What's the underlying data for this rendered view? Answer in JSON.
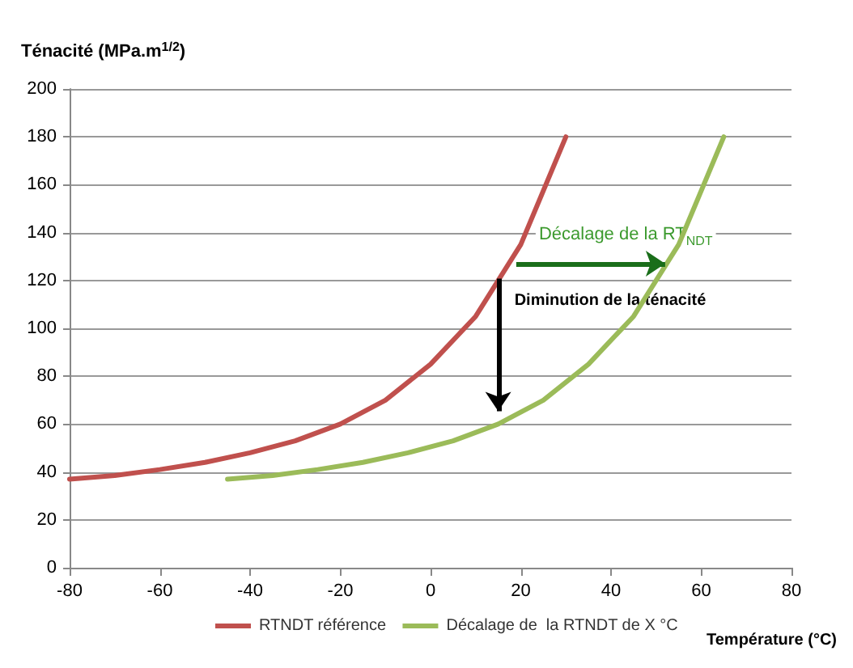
{
  "chart_data": {
    "type": "line",
    "ylabel": "Ténacité (MPa.m$^{1/2}$)",
    "xlabel": "Température (°C)",
    "series": [
      {
        "name": "RTNDT référence",
        "color": "#c0504d",
        "x": [
          -80,
          -70,
          -60,
          -50,
          -40,
          -30,
          -20,
          -10,
          0,
          10,
          20,
          30
        ],
        "values": [
          37,
          38.5,
          41,
          44,
          48,
          53,
          60,
          70,
          85,
          105,
          135,
          180
        ]
      },
      {
        "name": "Décalage de  la RTNDT de X °C",
        "color": "#9bbb59",
        "x": [
          -45,
          -35,
          -25,
          -15,
          -5,
          5,
          15,
          25,
          35,
          45,
          55,
          65
        ],
        "values": [
          37,
          38.5,
          41,
          44,
          48,
          53,
          60,
          70,
          85,
          105,
          135,
          180
        ]
      }
    ],
    "annotations": [
      {
        "text": "Diminution de la ténacité",
        "x": 15,
        "y": 60
      },
      {
        "text": "Décalage de la RT$_{NDT}$",
        "x": 52,
        "y": 127
      }
    ],
    "xlim": [
      -80,
      80
    ],
    "xticks": [
      -80,
      -60,
      -40,
      -20,
      0,
      20,
      40,
      60,
      80
    ],
    "ylim": [
      0,
      200
    ],
    "yticks": [
      0,
      20,
      40,
      60,
      80,
      100,
      120,
      140,
      160,
      180,
      200
    ],
    "grid": "y",
    "legend": "bottom",
    "marker": "none",
    "line_style": "solid"
  }
}
